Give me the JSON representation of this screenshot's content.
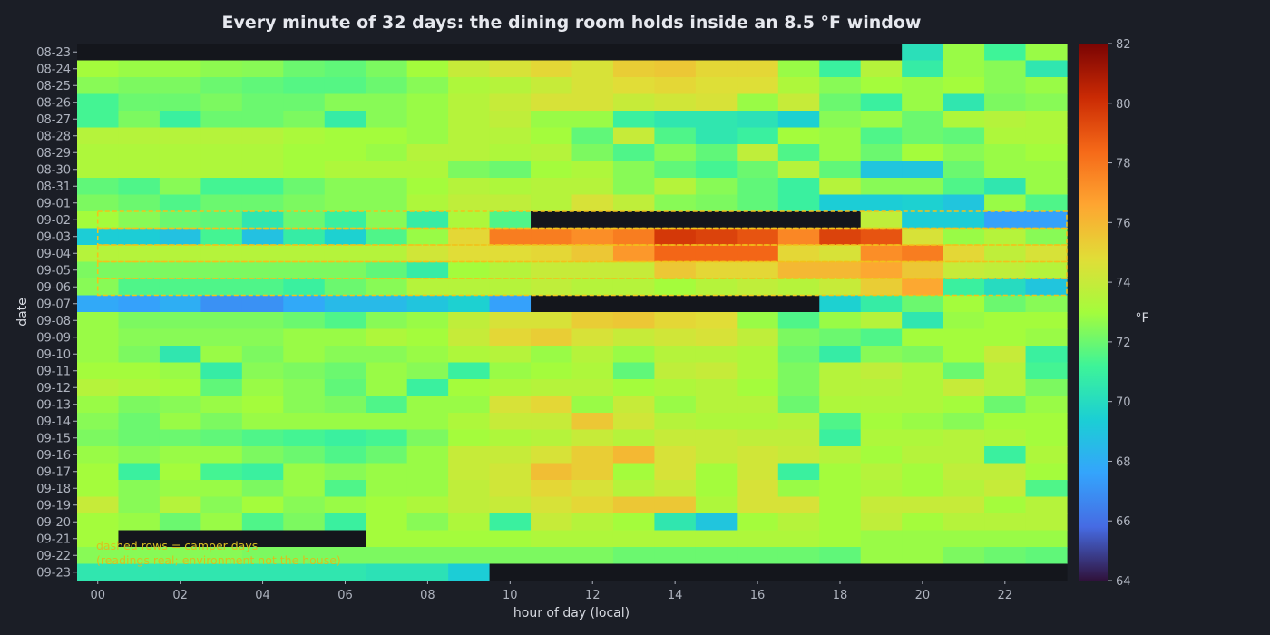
{
  "chart_data": {
    "type": "heatmap",
    "title": "Every minute of 32 days: the dining room holds inside an 8.5 °F window",
    "xlabel": "hour of day (local)",
    "ylabel": "date",
    "colorbar_label": "°F",
    "colormap": "turbo",
    "missing_color": "#14161c",
    "highlight_color": "#f2c21a",
    "vlim": [
      64,
      82
    ],
    "colorbar_ticks": [
      64,
      66,
      68,
      70,
      72,
      74,
      76,
      78,
      80,
      82
    ],
    "x_ticks": [
      0,
      2,
      4,
      6,
      8,
      10,
      12,
      14,
      16,
      18,
      20,
      22
    ],
    "x_tick_labels": [
      "00",
      "02",
      "04",
      "06",
      "08",
      "10",
      "12",
      "14",
      "16",
      "18",
      "20",
      "22"
    ],
    "hours": [
      0,
      1,
      2,
      3,
      4,
      5,
      6,
      7,
      8,
      9,
      10,
      11,
      12,
      13,
      14,
      15,
      16,
      17,
      18,
      19,
      20,
      21,
      22,
      23
    ],
    "dates": [
      "08-23",
      "08-24",
      "08-25",
      "08-26",
      "08-27",
      "08-28",
      "08-29",
      "08-30",
      "08-31",
      "09-01",
      "09-02",
      "09-03",
      "09-04",
      "09-05",
      "09-06",
      "09-07",
      "09-08",
      "09-09",
      "09-10",
      "09-11",
      "09-12",
      "09-13",
      "09-14",
      "09-15",
      "09-16",
      "09-17",
      "09-18",
      "09-19",
      "09-20",
      "09-21",
      "09-22",
      "09-23"
    ],
    "values": [
      [
        null,
        null,
        null,
        null,
        null,
        null,
        null,
        null,
        null,
        null,
        null,
        null,
        null,
        null,
        null,
        null,
        null,
        null,
        null,
        null,
        70.2,
        72.8,
        71.2,
        72.8
      ],
      [
        73.0,
        72.8,
        72.8,
        72.6,
        72.5,
        72.0,
        71.8,
        72.3,
        73.0,
        74.0,
        74.5,
        75.0,
        74.5,
        75.3,
        75.5,
        75.0,
        75.0,
        72.8,
        71.0,
        73.5,
        70.8,
        72.8,
        72.5,
        70.5
      ],
      [
        72.5,
        72.3,
        72.3,
        72.0,
        71.8,
        71.6,
        71.6,
        72.0,
        72.5,
        73.3,
        73.5,
        74.0,
        74.5,
        74.8,
        75.0,
        74.7,
        74.7,
        73.3,
        72.5,
        73.0,
        72.8,
        73.0,
        72.5,
        72.8
      ],
      [
        71.3,
        72.0,
        72.0,
        72.3,
        72.0,
        72.0,
        72.5,
        72.5,
        72.8,
        73.5,
        74.0,
        74.5,
        74.5,
        74.0,
        74.3,
        74.5,
        72.8,
        74.0,
        72.0,
        71.0,
        72.8,
        70.5,
        72.3,
        72.5
      ],
      [
        71.3,
        72.3,
        71.0,
        72.0,
        72.0,
        72.3,
        70.8,
        72.5,
        72.8,
        73.5,
        73.8,
        72.8,
        72.8,
        71.0,
        70.5,
        70.5,
        70.3,
        69.5,
        72.5,
        72.8,
        72.0,
        73.3,
        73.5,
        73.3
      ],
      [
        73.5,
        73.5,
        73.5,
        73.5,
        73.5,
        73.2,
        73.0,
        73.0,
        72.8,
        73.5,
        73.5,
        73.0,
        71.8,
        74.0,
        71.5,
        70.5,
        71.0,
        73.0,
        72.8,
        71.5,
        72.0,
        71.8,
        73.3,
        73.3
      ],
      [
        73.3,
        73.3,
        73.3,
        73.3,
        73.3,
        73.0,
        73.0,
        72.8,
        73.5,
        73.5,
        73.3,
        73.5,
        72.3,
        71.5,
        72.5,
        71.8,
        73.8,
        71.5,
        72.8,
        72.0,
        73.0,
        72.5,
        72.8,
        73.0
      ],
      [
        73.3,
        73.3,
        73.3,
        73.3,
        73.3,
        73.0,
        73.3,
        73.3,
        73.3,
        72.3,
        72.0,
        73.0,
        73.3,
        72.5,
        71.8,
        71.3,
        72.0,
        73.5,
        71.8,
        69.0,
        69.0,
        72.0,
        72.8,
        72.8
      ],
      [
        71.8,
        71.5,
        72.5,
        71.3,
        71.3,
        72.0,
        72.5,
        72.5,
        73.0,
        73.5,
        73.3,
        73.5,
        73.5,
        72.5,
        73.5,
        72.5,
        71.8,
        71.0,
        73.5,
        72.5,
        72.5,
        71.5,
        70.5,
        72.8
      ],
      [
        72.3,
        72.0,
        71.5,
        72.0,
        72.0,
        72.3,
        72.5,
        72.5,
        73.3,
        73.8,
        73.8,
        73.5,
        74.5,
        73.8,
        72.5,
        72.3,
        71.8,
        71.0,
        69.3,
        69.3,
        69.5,
        69.0,
        72.8,
        71.5
      ],
      [
        73.0,
        72.5,
        72.0,
        71.8,
        70.5,
        72.0,
        71.0,
        72.5,
        70.8,
        73.3,
        71.5,
        null,
        null,
        null,
        null,
        null,
        null,
        null,
        null,
        73.8,
        69.3,
        69.3,
        67.5,
        67.5
      ],
      [
        69.3,
        69.3,
        68.8,
        71.3,
        68.8,
        70.8,
        69.5,
        71.5,
        72.8,
        75.0,
        77.8,
        77.8,
        77.3,
        77.8,
        79.8,
        79.5,
        79.0,
        77.5,
        79.5,
        79.0,
        74.5,
        72.8,
        73.5,
        72.5
      ],
      [
        73.5,
        73.5,
        73.5,
        73.5,
        73.5,
        73.5,
        73.5,
        73.5,
        74.3,
        74.8,
        74.8,
        75.0,
        75.5,
        77.0,
        78.5,
        78.5,
        78.5,
        75.0,
        74.5,
        77.3,
        77.8,
        75.0,
        73.8,
        74.5
      ],
      [
        72.3,
        72.3,
        72.3,
        72.3,
        72.3,
        72.3,
        72.3,
        71.8,
        70.8,
        73.0,
        73.5,
        74.0,
        74.0,
        74.0,
        75.5,
        75.0,
        75.0,
        76.0,
        76.0,
        76.5,
        75.5,
        74.0,
        73.8,
        73.5
      ],
      [
        72.5,
        71.5,
        71.5,
        71.5,
        71.5,
        71.0,
        72.0,
        72.5,
        73.5,
        73.5,
        73.5,
        73.8,
        73.5,
        73.5,
        73.0,
        73.5,
        73.8,
        73.5,
        74.0,
        75.3,
        76.5,
        71.0,
        70.0,
        69.0
      ],
      [
        67.8,
        67.5,
        68.0,
        67.0,
        67.0,
        67.8,
        68.5,
        68.5,
        69.0,
        69.5,
        67.5,
        null,
        null,
        null,
        null,
        null,
        null,
        null,
        69.5,
        70.8,
        72.0,
        73.0,
        72.0,
        72.5
      ],
      [
        72.8,
        72.3,
        72.3,
        72.3,
        72.3,
        72.0,
        71.5,
        72.5,
        72.8,
        73.8,
        74.5,
        74.5,
        75.3,
        75.5,
        75.0,
        74.8,
        72.8,
        71.5,
        72.8,
        73.5,
        70.5,
        72.8,
        73.0,
        73.0
      ],
      [
        72.8,
        72.5,
        72.5,
        72.5,
        72.5,
        72.8,
        72.8,
        73.3,
        73.0,
        74.0,
        75.0,
        75.3,
        74.5,
        74.0,
        74.3,
        74.5,
        73.8,
        72.3,
        72.0,
        71.5,
        73.0,
        73.0,
        73.0,
        72.8
      ],
      [
        72.8,
        72.3,
        70.5,
        72.8,
        72.3,
        72.8,
        72.5,
        72.5,
        72.8,
        73.3,
        73.5,
        72.8,
        73.5,
        72.8,
        73.5,
        73.5,
        73.3,
        72.0,
        70.8,
        72.5,
        72.3,
        73.0,
        74.0,
        71.0
      ],
      [
        73.0,
        73.0,
        72.8,
        70.8,
        72.5,
        72.3,
        72.0,
        72.8,
        72.5,
        71.0,
        72.8,
        73.0,
        73.3,
        71.8,
        73.8,
        74.0,
        73.3,
        72.3,
        73.5,
        73.8,
        73.3,
        72.0,
        73.5,
        71.3
      ],
      [
        73.5,
        73.3,
        73.0,
        71.8,
        72.8,
        72.5,
        71.8,
        72.8,
        71.0,
        73.0,
        73.3,
        73.5,
        73.5,
        73.0,
        73.3,
        73.5,
        73.0,
        72.3,
        73.5,
        73.5,
        73.3,
        74.0,
        73.5,
        72.3
      ],
      [
        72.8,
        72.3,
        72.5,
        72.8,
        73.0,
        72.5,
        72.3,
        71.5,
        72.8,
        72.8,
        74.5,
        75.0,
        72.8,
        74.0,
        72.8,
        73.5,
        73.5,
        72.0,
        73.3,
        73.3,
        73.3,
        73.0,
        72.0,
        72.8
      ],
      [
        72.5,
        72.0,
        72.8,
        72.3,
        72.8,
        72.8,
        72.8,
        72.8,
        72.8,
        73.3,
        74.0,
        74.0,
        75.5,
        74.3,
        73.5,
        73.3,
        73.3,
        73.5,
        71.5,
        73.0,
        72.8,
        72.5,
        73.0,
        73.0
      ],
      [
        72.3,
        72.0,
        72.0,
        71.8,
        71.5,
        71.3,
        71.0,
        71.3,
        72.3,
        73.0,
        73.3,
        73.5,
        74.0,
        73.5,
        74.0,
        74.0,
        73.8,
        73.8,
        71.0,
        73.3,
        73.3,
        73.5,
        73.3,
        73.0
      ],
      [
        72.8,
        72.5,
        72.8,
        72.8,
        72.3,
        72.0,
        71.5,
        72.0,
        72.8,
        74.0,
        74.0,
        74.5,
        75.3,
        76.0,
        74.5,
        74.0,
        74.3,
        74.0,
        73.5,
        73.0,
        73.5,
        73.5,
        71.0,
        73.3
      ],
      [
        73.0,
        71.0,
        73.0,
        71.3,
        71.0,
        72.8,
        72.5,
        72.8,
        72.8,
        74.0,
        74.3,
        75.8,
        75.3,
        73.0,
        74.5,
        73.0,
        74.3,
        71.0,
        73.0,
        73.5,
        73.0,
        73.8,
        73.8,
        73.0
      ],
      [
        73.0,
        72.5,
        72.8,
        72.8,
        72.3,
        72.8,
        71.5,
        72.8,
        72.8,
        73.8,
        74.3,
        75.0,
        74.5,
        73.5,
        74.0,
        73.0,
        74.5,
        72.8,
        73.0,
        73.3,
        73.0,
        73.5,
        74.0,
        71.5
      ],
      [
        74.0,
        72.5,
        73.5,
        72.5,
        73.0,
        72.5,
        72.8,
        73.0,
        73.3,
        73.8,
        74.0,
        74.5,
        75.0,
        75.5,
        75.5,
        73.3,
        74.5,
        74.5,
        73.0,
        74.0,
        74.0,
        74.0,
        73.0,
        73.5
      ],
      [
        73.0,
        72.8,
        72.0,
        72.8,
        71.5,
        72.3,
        71.0,
        73.0,
        72.5,
        73.3,
        71.0,
        74.0,
        73.5,
        73.0,
        70.5,
        69.0,
        73.0,
        73.5,
        73.0,
        73.8,
        73.0,
        73.5,
        73.5,
        73.5
      ],
      [
        73.0,
        null,
        null,
        null,
        null,
        null,
        null,
        73.0,
        73.0,
        73.0,
        73.0,
        73.3,
        73.3,
        73.3,
        73.3,
        73.3,
        73.3,
        73.3,
        73.0,
        72.8,
        72.8,
        72.8,
        72.8,
        72.8
      ],
      [
        72.5,
        72.5,
        72.5,
        72.5,
        72.3,
        72.3,
        72.3,
        72.3,
        72.3,
        72.3,
        72.3,
        72.3,
        72.3,
        72.0,
        72.0,
        72.0,
        72.0,
        72.0,
        71.8,
        72.8,
        72.8,
        72.3,
        72.0,
        71.8
      ],
      [
        70.5,
        70.5,
        70.5,
        70.5,
        70.5,
        70.5,
        70.5,
        70.3,
        70.3,
        69.3,
        null,
        null,
        null,
        null,
        null,
        null,
        null,
        null,
        null,
        null,
        null,
        null,
        null,
        null
      ]
    ],
    "highlighted_dates": [
      "09-02",
      "09-03",
      "09-04",
      "09-05",
      "09-06"
    ],
    "annotations": [
      "dashed rows = camper days",
      "(readings real; environment not the house)"
    ]
  }
}
